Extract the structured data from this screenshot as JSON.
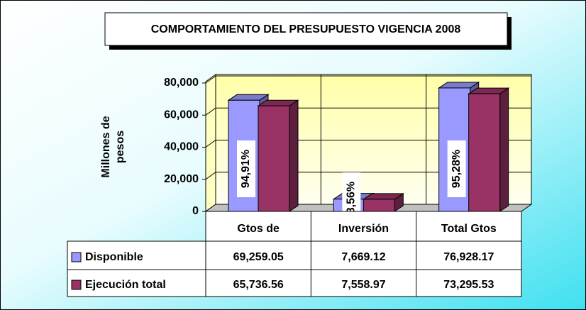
{
  "chart_data": {
    "type": "bar",
    "title": "COMPORTAMIENTO DEL PRESUPUESTO VIGENCIA 2008",
    "y_label": "Millones de pesos",
    "categories": [
      "Gtos de",
      "Inversión",
      "Total Gtos"
    ],
    "series": [
      {
        "name": "Disponible",
        "color": "#9999ff",
        "values": [
          69259.05,
          7669.12,
          76928.17
        ],
        "value_labels": [
          "69,259.05",
          "7,669.12",
          "76,928.17"
        ]
      },
      {
        "name": "Ejecución total",
        "color": "#993366",
        "values": [
          65736.56,
          7558.97,
          73295.53
        ],
        "value_labels": [
          "65,736.56",
          "7,558.97",
          "73,295.53"
        ]
      }
    ],
    "annotations": [
      "94,91%",
      "98,56%",
      "95,28%"
    ],
    "ylim": [
      0,
      80000
    ],
    "yticks": [
      0,
      {
        "value": 20000,
        "label": "20,000"
      },
      {
        "value": 40000,
        "label": "40,000"
      },
      {
        "value": 60000,
        "label": "60,000"
      },
      {
        "value": 80000,
        "label": "80,000"
      }
    ],
    "grid": true
  }
}
